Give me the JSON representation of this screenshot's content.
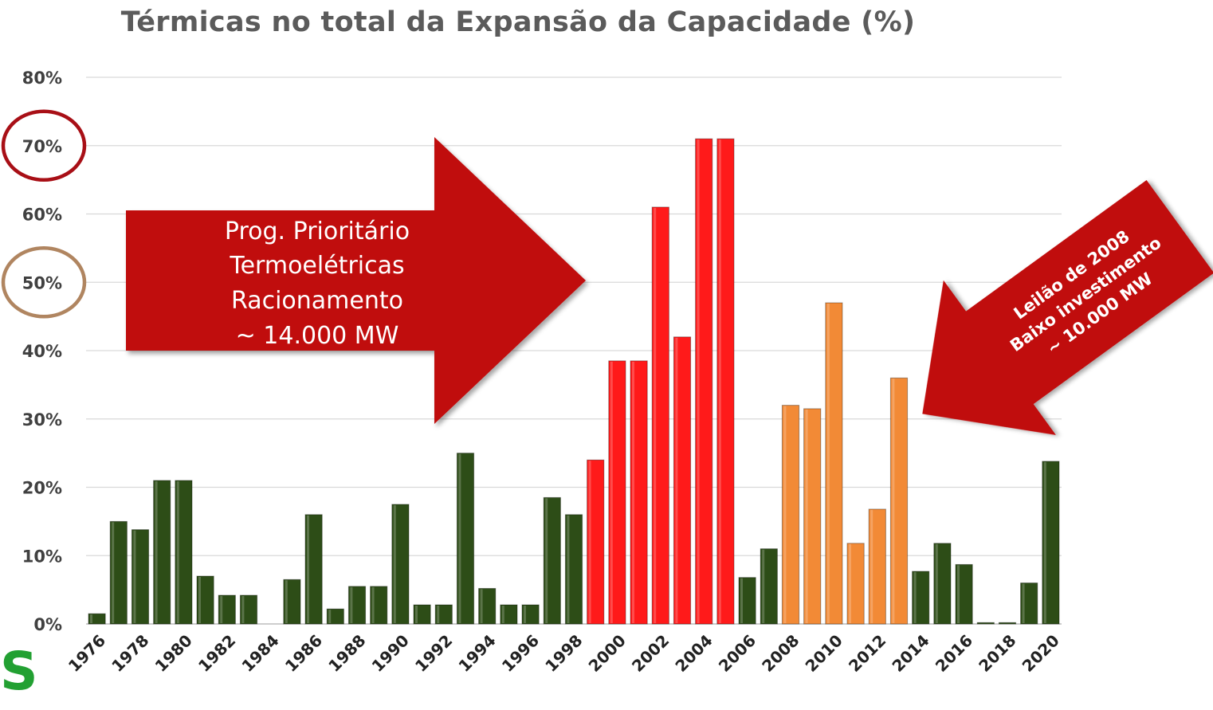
{
  "chart_data": {
    "type": "bar",
    "title": "Térmicas no total da Expansão da Capacidade (%)",
    "xlabel": "",
    "ylabel": "",
    "ylim": [
      0,
      80
    ],
    "yticks": [
      "0%",
      "10%",
      "20%",
      "30%",
      "40%",
      "50%",
      "60%",
      "70%",
      "80%"
    ],
    "grid": true,
    "categories": [
      "1976",
      "1977",
      "1978",
      "1979",
      "1980",
      "1981",
      "1982",
      "1983",
      "1984",
      "1985",
      "1986",
      "1987",
      "1988",
      "1989",
      "1990",
      "1991",
      "1992",
      "1993",
      "1994",
      "1995",
      "1996",
      "1997",
      "1998",
      "1999",
      "2000",
      "2001",
      "2002",
      "2003",
      "2004",
      "2005",
      "2006",
      "2007",
      "2008",
      "2009",
      "2010",
      "2011",
      "2012",
      "2013",
      "2014",
      "2015",
      "2016",
      "2017",
      "2018",
      "2019",
      "2020"
    ],
    "xtick_labels": [
      "1976",
      "1978",
      "1980",
      "1982",
      "1984",
      "1986",
      "1988",
      "1990",
      "1992",
      "1994",
      "1996",
      "1998",
      "2000",
      "2002",
      "2004",
      "2006",
      "2008",
      "2010",
      "2012",
      "2014",
      "2016",
      "2018",
      "2020"
    ],
    "values": [
      1.5,
      15,
      13.8,
      21,
      21,
      7,
      4.2,
      4.2,
      0,
      6.5,
      16,
      2.2,
      5.5,
      5.5,
      17.5,
      2.8,
      2.8,
      25,
      5.2,
      2.8,
      2.8,
      18.5,
      16,
      24,
      38.5,
      38.5,
      61,
      42,
      71,
      71,
      6.8,
      11,
      32,
      31.5,
      47,
      11.8,
      16.8,
      36,
      7.7,
      11.8,
      8.7,
      0.2,
      0.2,
      6,
      23.8
    ],
    "bar_colors": [
      "#2d4d17",
      "#2d4d17",
      "#2d4d17",
      "#2d4d17",
      "#2d4d17",
      "#2d4d17",
      "#2d4d17",
      "#2d4d17",
      "#2d4d17",
      "#2d4d17",
      "#2d4d17",
      "#2d4d17",
      "#2d4d17",
      "#2d4d17",
      "#2d4d17",
      "#2d4d17",
      "#2d4d17",
      "#2d4d17",
      "#2d4d17",
      "#2d4d17",
      "#2d4d17",
      "#2d4d17",
      "#2d4d17",
      "#ff1a1a",
      "#ff1a1a",
      "#ff1a1a",
      "#ff1a1a",
      "#ff1a1a",
      "#ff1a1a",
      "#ff1a1a",
      "#2d4d17",
      "#2d4d17",
      "#f28a36",
      "#f28a36",
      "#f28a36",
      "#f28a36",
      "#f28a36",
      "#f28a36",
      "#2d4d17",
      "#2d4d17",
      "#2d4d17",
      "#2d4d17",
      "#2d4d17",
      "#2d4d17",
      "#2d4d17"
    ],
    "highlighted_ticks": [
      {
        "label": "70%",
        "color": "#a80f16"
      },
      {
        "label": "50%",
        "color": "#b08560"
      }
    ],
    "annotations": [
      {
        "lines": [
          "Prog. Prioritário",
          "Termoelétricas",
          "Racionamento",
          "~ 14.000 MW"
        ],
        "direction": "right",
        "color": "#c00d0d"
      },
      {
        "lines": [
          "Leilão de 2008",
          "Baixo investimento",
          "~ 10.000 MW"
        ],
        "direction": "down-left",
        "color": "#c00d0d"
      }
    ]
  },
  "corner_mark": "S"
}
